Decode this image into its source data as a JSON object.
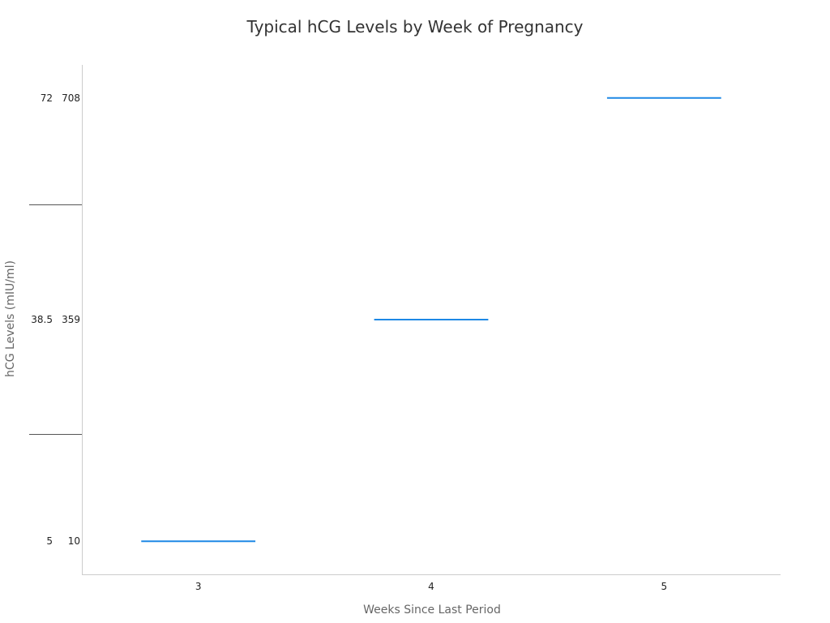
{
  "chart_data": {
    "type": "line",
    "title": "Typical hCG Levels by Week of Pregnancy",
    "xlabel": "Weeks Since Last Period",
    "ylabel": "hCG Levels (mIU/ml)",
    "categories": [
      "3",
      "4",
      "5"
    ],
    "y_tick_labels": [
      [
        "5",
        "10"
      ],
      [
        "38.5",
        "359"
      ],
      [
        "72",
        "708"
      ]
    ],
    "series": [
      {
        "values": [
          5,
          38.5,
          72
        ]
      }
    ],
    "ylim": [
      0,
      77
    ],
    "colors": {
      "line": "#1e88e5",
      "axis": "#cccccc",
      "separator": "#555555"
    },
    "grid": false,
    "legend": "none"
  }
}
